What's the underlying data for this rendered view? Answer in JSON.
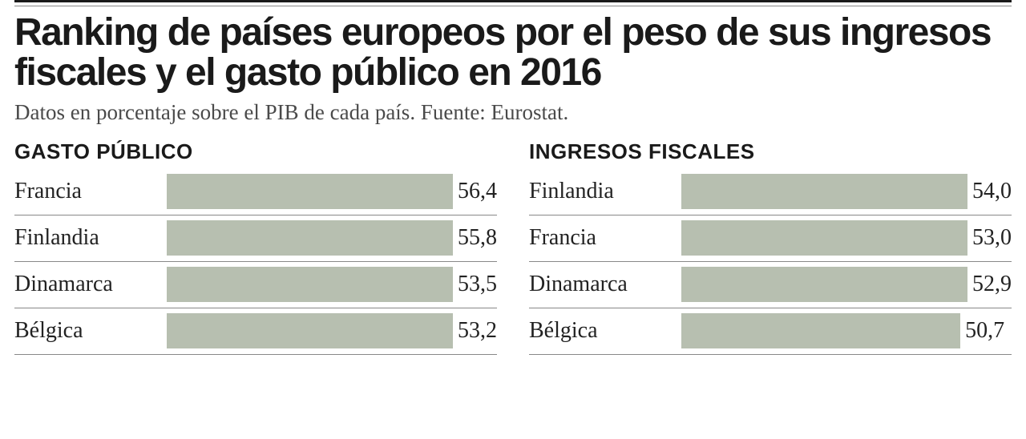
{
  "headline": "Ranking de países europeos por el peso de sus ingresos fiscales y el gasto público en 2016",
  "subhead": "Datos en porcentaje sobre el PIB de cada país. Fuente: Eurostat.",
  "bar_color": "#b7bfb0",
  "rule_color_dark": "#1a1a1a",
  "rule_color_light": "#888888",
  "text_color": "#1a1a1a",
  "background_color": "#ffffff",
  "label_fontsize": 28,
  "value_fontsize": 28,
  "chart_title_fontsize": 26,
  "headline_fontsize": 48,
  "subhead_fontsize": 27,
  "bar_max_value": 60,
  "charts": [
    {
      "title": "GASTO PÚBLICO",
      "rows": [
        {
          "label": "Francia",
          "value": 56.4,
          "display": "56,4"
        },
        {
          "label": "Finlandia",
          "value": 55.8,
          "display": "55,8"
        },
        {
          "label": "Dinamarca",
          "value": 53.5,
          "display": "53,5"
        },
        {
          "label": "Bélgica",
          "value": 53.2,
          "display": "53,2"
        }
      ]
    },
    {
      "title": "INGRESOS FISCALES",
      "rows": [
        {
          "label": "Finlandia",
          "value": 54.0,
          "display": "54,0"
        },
        {
          "label": "Francia",
          "value": 53.0,
          "display": "53,0"
        },
        {
          "label": "Dinamarca",
          "value": 52.9,
          "display": "52,9"
        },
        {
          "label": "Bélgica",
          "value": 50.7,
          "display": "50,7"
        }
      ]
    }
  ]
}
